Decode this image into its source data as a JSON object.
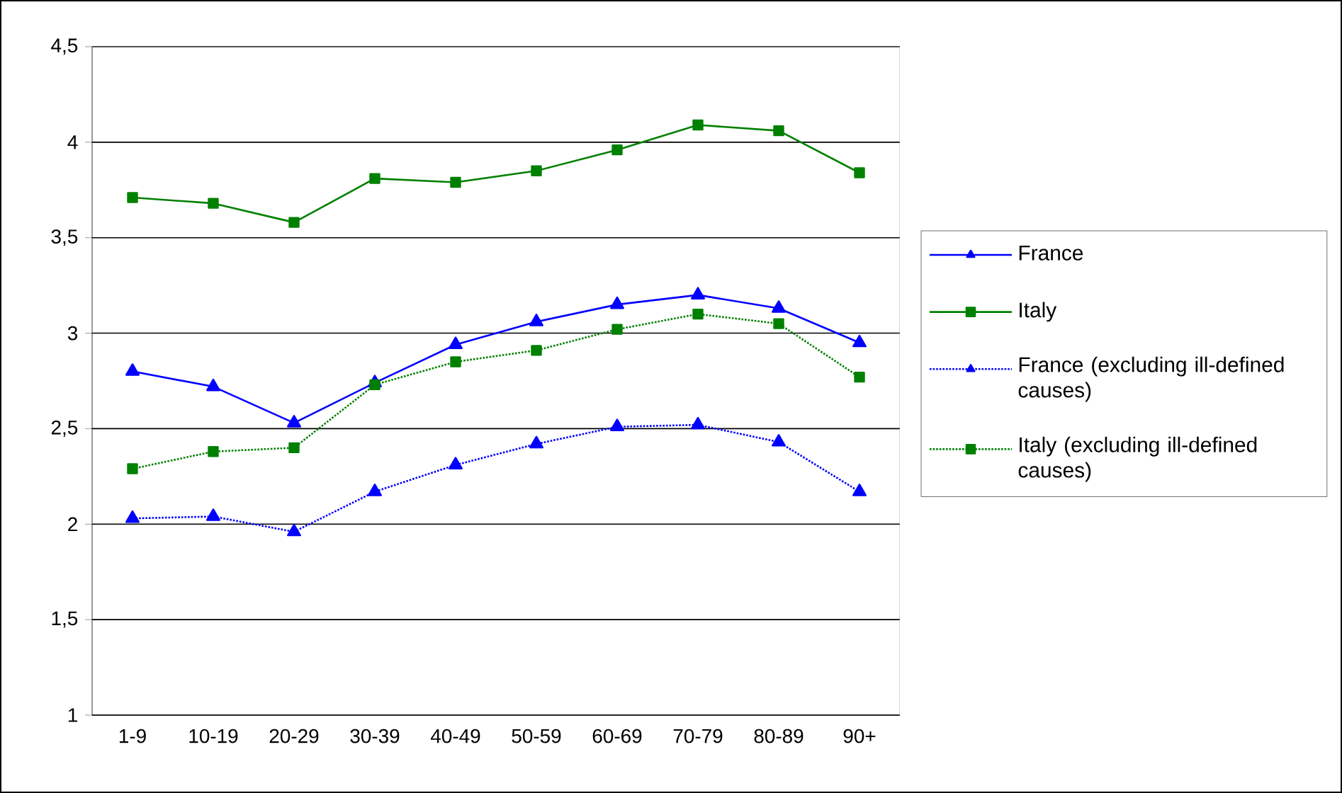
{
  "chart_data": {
    "type": "line",
    "categories": [
      "1-9",
      "10-19",
      "20-29",
      "30-39",
      "40-49",
      "50-59",
      "60-69",
      "70-79",
      "80-89",
      "90+"
    ],
    "series": [
      {
        "name": "France",
        "color": "#0000ff",
        "marker": "triangle",
        "line_style": "solid",
        "values": [
          2.8,
          2.72,
          2.53,
          2.74,
          2.94,
          3.06,
          3.15,
          3.2,
          3.13,
          2.95
        ]
      },
      {
        "name": "Italy",
        "color": "#008000",
        "marker": "square",
        "line_style": "solid",
        "values": [
          3.71,
          3.68,
          3.58,
          3.81,
          3.79,
          3.85,
          3.96,
          4.09,
          4.06,
          3.84
        ]
      },
      {
        "name": "France (excluding ill-defined causes)",
        "color": "#0000ff",
        "marker": "triangle",
        "line_style": "dotted",
        "values": [
          2.03,
          2.04,
          1.96,
          2.17,
          2.31,
          2.42,
          2.51,
          2.52,
          2.43,
          2.17
        ]
      },
      {
        "name": "Italy (excluding ill-defined causes)",
        "color": "#008000",
        "marker": "square",
        "line_style": "dotted",
        "values": [
          2.29,
          2.38,
          2.4,
          2.73,
          2.85,
          2.91,
          3.02,
          3.1,
          3.05,
          2.77
        ]
      }
    ],
    "ylim": [
      1,
      4.5
    ],
    "yticks": [
      1,
      {
        "value": 1.5,
        "label": "1,5"
      },
      2,
      {
        "value": 2.5,
        "label": "2,5"
      },
      3,
      {
        "value": 3.5,
        "label": "3,5"
      },
      4,
      {
        "value": 4.5,
        "label": "4,5"
      }
    ],
    "grid": "y",
    "legend": "right"
  }
}
